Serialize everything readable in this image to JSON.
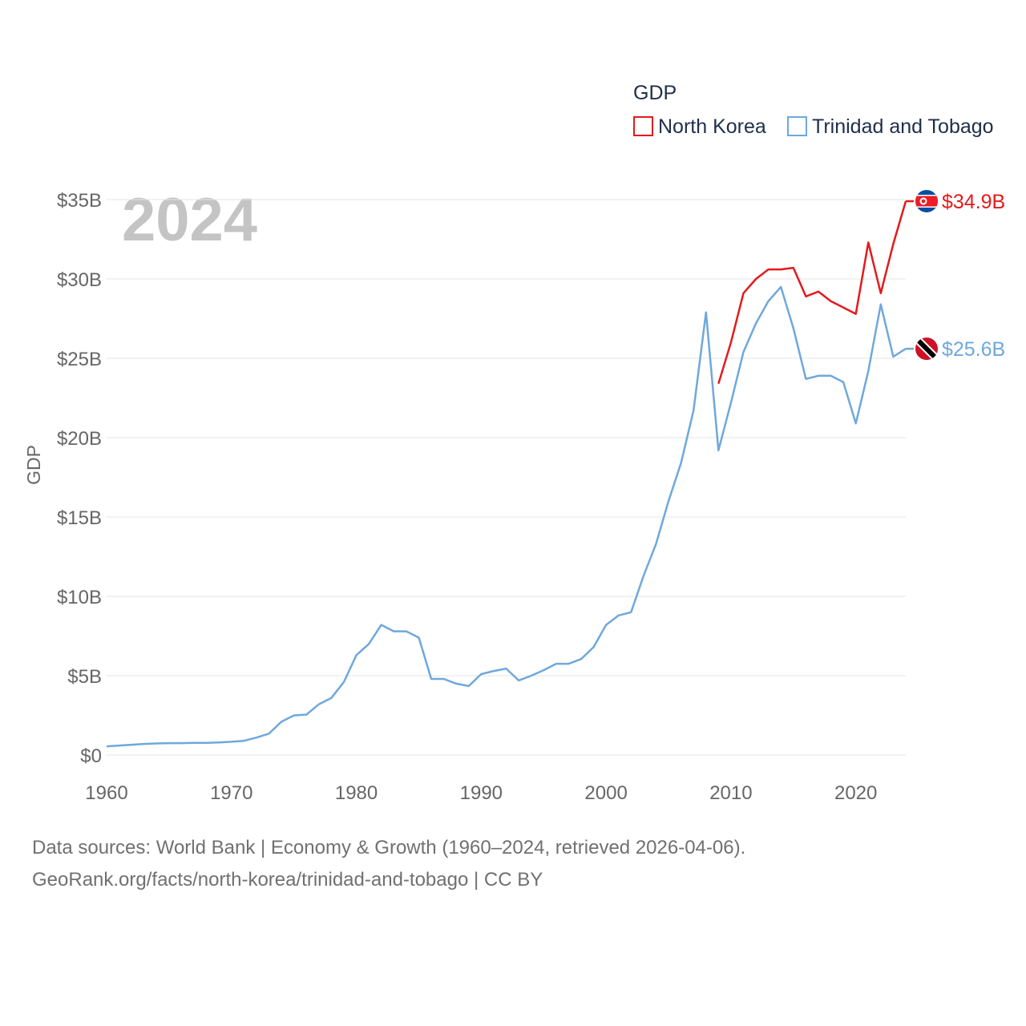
{
  "chart_data": {
    "type": "line",
    "title": "GDP",
    "year_label": "2024",
    "ylabel": "GDP",
    "xlim": [
      1960,
      2024
    ],
    "ylim": [
      0,
      35
    ],
    "y_ticks": [
      {
        "value": 0,
        "label": "$0"
      },
      {
        "value": 5,
        "label": "$5B"
      },
      {
        "value": 10,
        "label": "$10B"
      },
      {
        "value": 15,
        "label": "$15B"
      },
      {
        "value": 20,
        "label": "$20B"
      },
      {
        "value": 25,
        "label": "$25B"
      },
      {
        "value": 30,
        "label": "$30B"
      },
      {
        "value": 35,
        "label": "$35B"
      }
    ],
    "x_ticks": [
      {
        "value": 1960,
        "label": "1960"
      },
      {
        "value": 1970,
        "label": "1970"
      },
      {
        "value": 1980,
        "label": "1980"
      },
      {
        "value": 1990,
        "label": "1990"
      },
      {
        "value": 2000,
        "label": "2000"
      },
      {
        "value": 2010,
        "label": "2010"
      },
      {
        "value": 2020,
        "label": "2020"
      }
    ],
    "legend_position": "top-right",
    "series": [
      {
        "name": "North Korea",
        "color": "#e31a1c",
        "end_label": "$34.9B",
        "flag": "north-korea-flag-icon",
        "x": [
          2009,
          2010,
          2011,
          2012,
          2013,
          2014,
          2015,
          2016,
          2017,
          2018,
          2019,
          2020,
          2021,
          2022,
          2023,
          2024
        ],
        "values": [
          23.4,
          26.0,
          29.1,
          30.0,
          30.6,
          30.6,
          30.7,
          28.9,
          29.2,
          28.6,
          28.2,
          27.8,
          32.3,
          29.1,
          32.2,
          34.9
        ]
      },
      {
        "name": "Trinidad and Tobago",
        "color": "#6fa8dc",
        "end_label": "$25.6B",
        "flag": "trinidad-and-tobago-flag-icon",
        "x": [
          1960,
          1961,
          1962,
          1963,
          1964,
          1965,
          1966,
          1967,
          1968,
          1969,
          1970,
          1971,
          1972,
          1973,
          1974,
          1975,
          1976,
          1977,
          1978,
          1979,
          1980,
          1981,
          1982,
          1983,
          1984,
          1985,
          1986,
          1987,
          1988,
          1989,
          1990,
          1991,
          1992,
          1993,
          1994,
          1995,
          1996,
          1997,
          1998,
          1999,
          2000,
          2001,
          2002,
          2003,
          2004,
          2005,
          2006,
          2007,
          2008,
          2009,
          2010,
          2011,
          2012,
          2013,
          2014,
          2015,
          2016,
          2017,
          2018,
          2019,
          2020,
          2021,
          2022,
          2023,
          2024
        ],
        "values": [
          0.55,
          0.6,
          0.65,
          0.7,
          0.73,
          0.75,
          0.75,
          0.77,
          0.77,
          0.8,
          0.84,
          0.9,
          1.1,
          1.35,
          2.1,
          2.5,
          2.55,
          3.2,
          3.6,
          4.6,
          6.3,
          7.0,
          8.2,
          7.8,
          7.8,
          7.4,
          4.8,
          4.8,
          4.5,
          4.35,
          5.1,
          5.3,
          5.45,
          4.7,
          5.0,
          5.35,
          5.75,
          5.75,
          6.05,
          6.8,
          8.2,
          8.8,
          9.0,
          11.3,
          13.3,
          16.0,
          18.4,
          21.7,
          27.9,
          19.2,
          22.2,
          25.4,
          27.2,
          28.6,
          29.5,
          26.9,
          23.7,
          23.9,
          23.9,
          23.5,
          20.9,
          24.2,
          28.4,
          25.1,
          25.6
        ]
      }
    ]
  },
  "footer": {
    "line1": "Data sources: World Bank | Economy & Growth (1960–2024, retrieved 2026-04-06).",
    "line2": "GeoRank.org/facts/north-korea/trinidad-and-tobago | CC BY"
  }
}
